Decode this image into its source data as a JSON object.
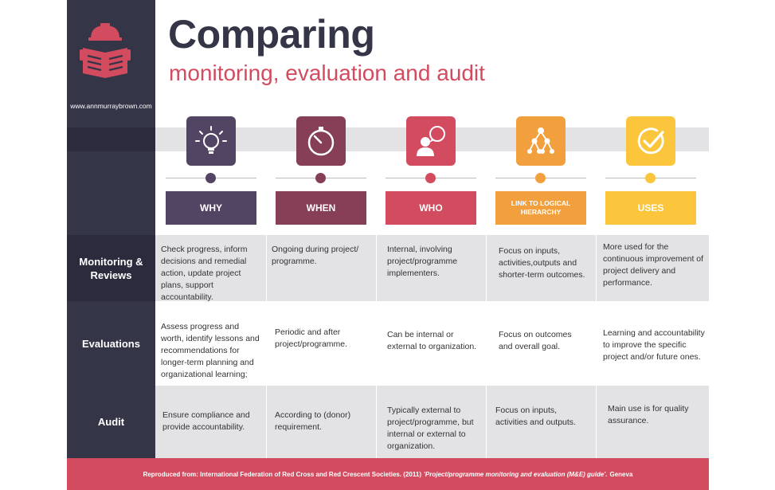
{
  "site_url": "www.annmurraybrown.com",
  "title": "Comparing",
  "subtitle": "monitoring, evaluation and audit",
  "colors": {
    "sidebar": "#353548",
    "accent_red": "#d24b5e",
    "why": "#524463",
    "when": "#863f57",
    "who": "#d24b5e",
    "link": "#f2a03d",
    "uses": "#fbc53c"
  },
  "columns": [
    {
      "label": "WHY",
      "icon": "lightbulb-icon"
    },
    {
      "label": "WHEN",
      "icon": "stopwatch-icon"
    },
    {
      "label": "WHO",
      "icon": "person-speech-icon"
    },
    {
      "label": "LINK TO LOGICAL HIERARCHY",
      "icon": "hierarchy-icon"
    },
    {
      "label": "USES",
      "icon": "checkmark-icon"
    }
  ],
  "rows": [
    {
      "label": "Monitoring & Reviews",
      "cells": [
        "Check progress, inform decisions and remedial action, update project plans, support accountability.",
        "Ongoing during project/ programme.",
        "Internal, involving project/programme implementers.",
        "Focus on inputs, activities,outputs and shorter-term outcomes.",
        "More used for the continuous improvement of project delivery and performance."
      ]
    },
    {
      "label": "Evaluations",
      "cells": [
        "Assess progress and worth, identify lessons and recommendations for longer-term planning and organizational learning;",
        "Periodic and after project/programme.",
        "Can be internal or external to organization.",
        "Focus on outcomes and overall goal.",
        "Learning and accountability to improve the specific project and/or future ones."
      ]
    },
    {
      "label": "Audit",
      "cells": [
        "Ensure compliance and provide accountability.",
        "According to (donor) requirement.",
        "Typically external to project/programme, but internal or external to organization.",
        "Focus on inputs, activities and outputs.",
        "Main use is for quality assurance."
      ]
    }
  ],
  "footer": {
    "prefix": "Reproduced from: International Federation of Red Cross and Red Crescent Societies. (2011)",
    "work": "'Project/programme monitoring and evaluation (M&E) guide'.",
    "suffix": "Geneva"
  }
}
